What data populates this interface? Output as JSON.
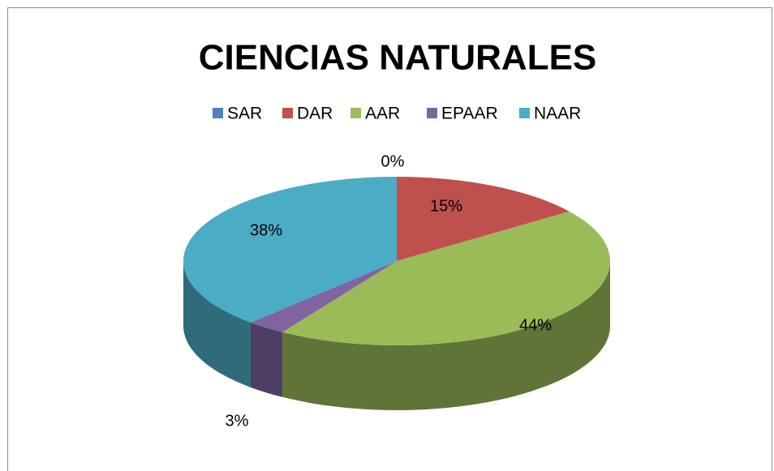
{
  "chart_data": {
    "type": "pie",
    "title": "CIENCIAS NATURALES",
    "categories": [
      "SAR",
      "DAR",
      "AAR",
      "EPAAR",
      "NAAR"
    ],
    "values": [
      0,
      15,
      44,
      3,
      38
    ],
    "value_labels": [
      "0%",
      "15%",
      "44%",
      "3%",
      "38%"
    ],
    "colors": [
      "#4f81bd",
      "#c0504d",
      "#9bbb59",
      "#8064a2",
      "#4bacc6"
    ],
    "legend": "top"
  }
}
